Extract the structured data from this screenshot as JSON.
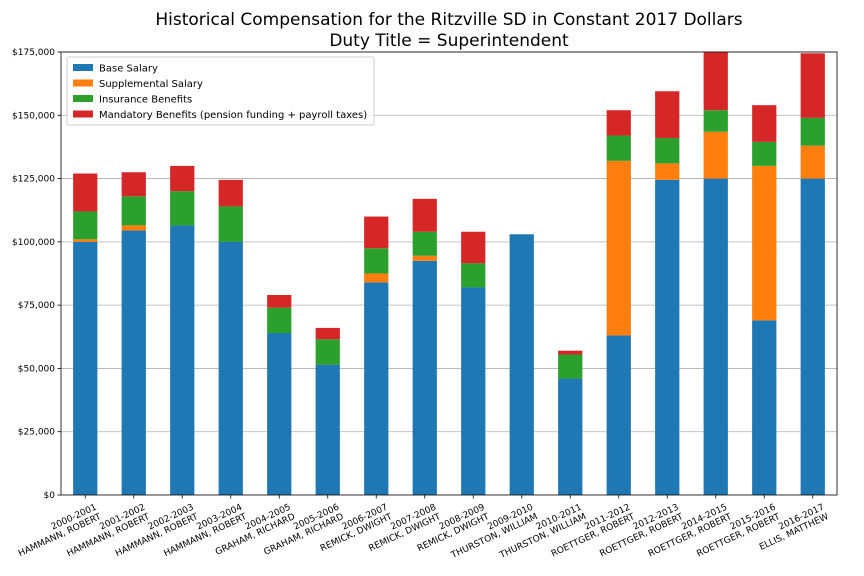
{
  "chart_data": {
    "type": "bar",
    "stacked": true,
    "title": "Historical Compensation for the Ritzville SD in Constant 2017 Dollars",
    "subtitle": "Duty Title = Superintendent",
    "xlabel": "",
    "ylabel": "",
    "ylim": [
      0,
      175000
    ],
    "yticks": [
      0,
      25000,
      50000,
      75000,
      100000,
      125000,
      150000,
      175000
    ],
    "ytick_labels": [
      "$0",
      "$25,000",
      "$50,000",
      "$75,000",
      "$100,000",
      "$125,000",
      "$150,000",
      "$175,000"
    ],
    "grid": "horizontal",
    "legend_position": "top-left",
    "categories": [
      [
        "2000-2001",
        "HAMMANN, ROBERT"
      ],
      [
        "2001-2002",
        "HAMMANN, ROBERT"
      ],
      [
        "2002-2003",
        "HAMMANN, ROBERT"
      ],
      [
        "2003-2004",
        "HAMMANN, ROBERT"
      ],
      [
        "2004-2005",
        "GRAHAM, RICHARD"
      ],
      [
        "2005-2006",
        "GRAHAM, RICHARD"
      ],
      [
        "2006-2007",
        "REMICK, DWIGHT"
      ],
      [
        "2007-2008",
        "REMICK, DWIGHT"
      ],
      [
        "2008-2009",
        "REMICK, DWIGHT"
      ],
      [
        "2009-2010",
        "THURSTON, WILLIAM"
      ],
      [
        "2010-2011",
        "THURSTON, WILLIAM"
      ],
      [
        "2011-2012",
        "ROETTGER, ROBERT"
      ],
      [
        "2012-2013",
        "ROETTGER, ROBERT"
      ],
      [
        "2014-2015",
        "ROETTGER, ROBERT"
      ],
      [
        "2015-2016",
        "ROETTGER, ROBERT"
      ],
      [
        "2016-2017",
        "ELLIS, MATTHEW"
      ]
    ],
    "series": [
      {
        "name": "Base Salary",
        "color": "#1f77b4",
        "values": [
          100000,
          104500,
          106500,
          100000,
          64000,
          51500,
          84000,
          92500,
          82000,
          103000,
          46000,
          63000,
          124500,
          125000,
          69000,
          125000
        ]
      },
      {
        "name": "Supplemental Salary",
        "color": "#ff7f0e",
        "values": [
          1000,
          2000,
          0,
          0,
          0,
          0,
          3500,
          2000,
          0,
          0,
          0,
          69000,
          6500,
          18500,
          61000,
          13000
        ]
      },
      {
        "name": "Insurance Benefits",
        "color": "#2ca02c",
        "values": [
          11000,
          11500,
          13500,
          14000,
          10000,
          10000,
          10000,
          9500,
          9500,
          0,
          9500,
          10000,
          10000,
          8500,
          9500,
          11000
        ]
      },
      {
        "name": "Mandatory Benefits (pension funding + payroll taxes)",
        "color": "#d62728",
        "values": [
          15000,
          9500,
          10000,
          10500,
          5000,
          4500,
          12500,
          13000,
          12500,
          0,
          1500,
          10000,
          18500,
          23000,
          14500,
          25500
        ]
      }
    ]
  }
}
